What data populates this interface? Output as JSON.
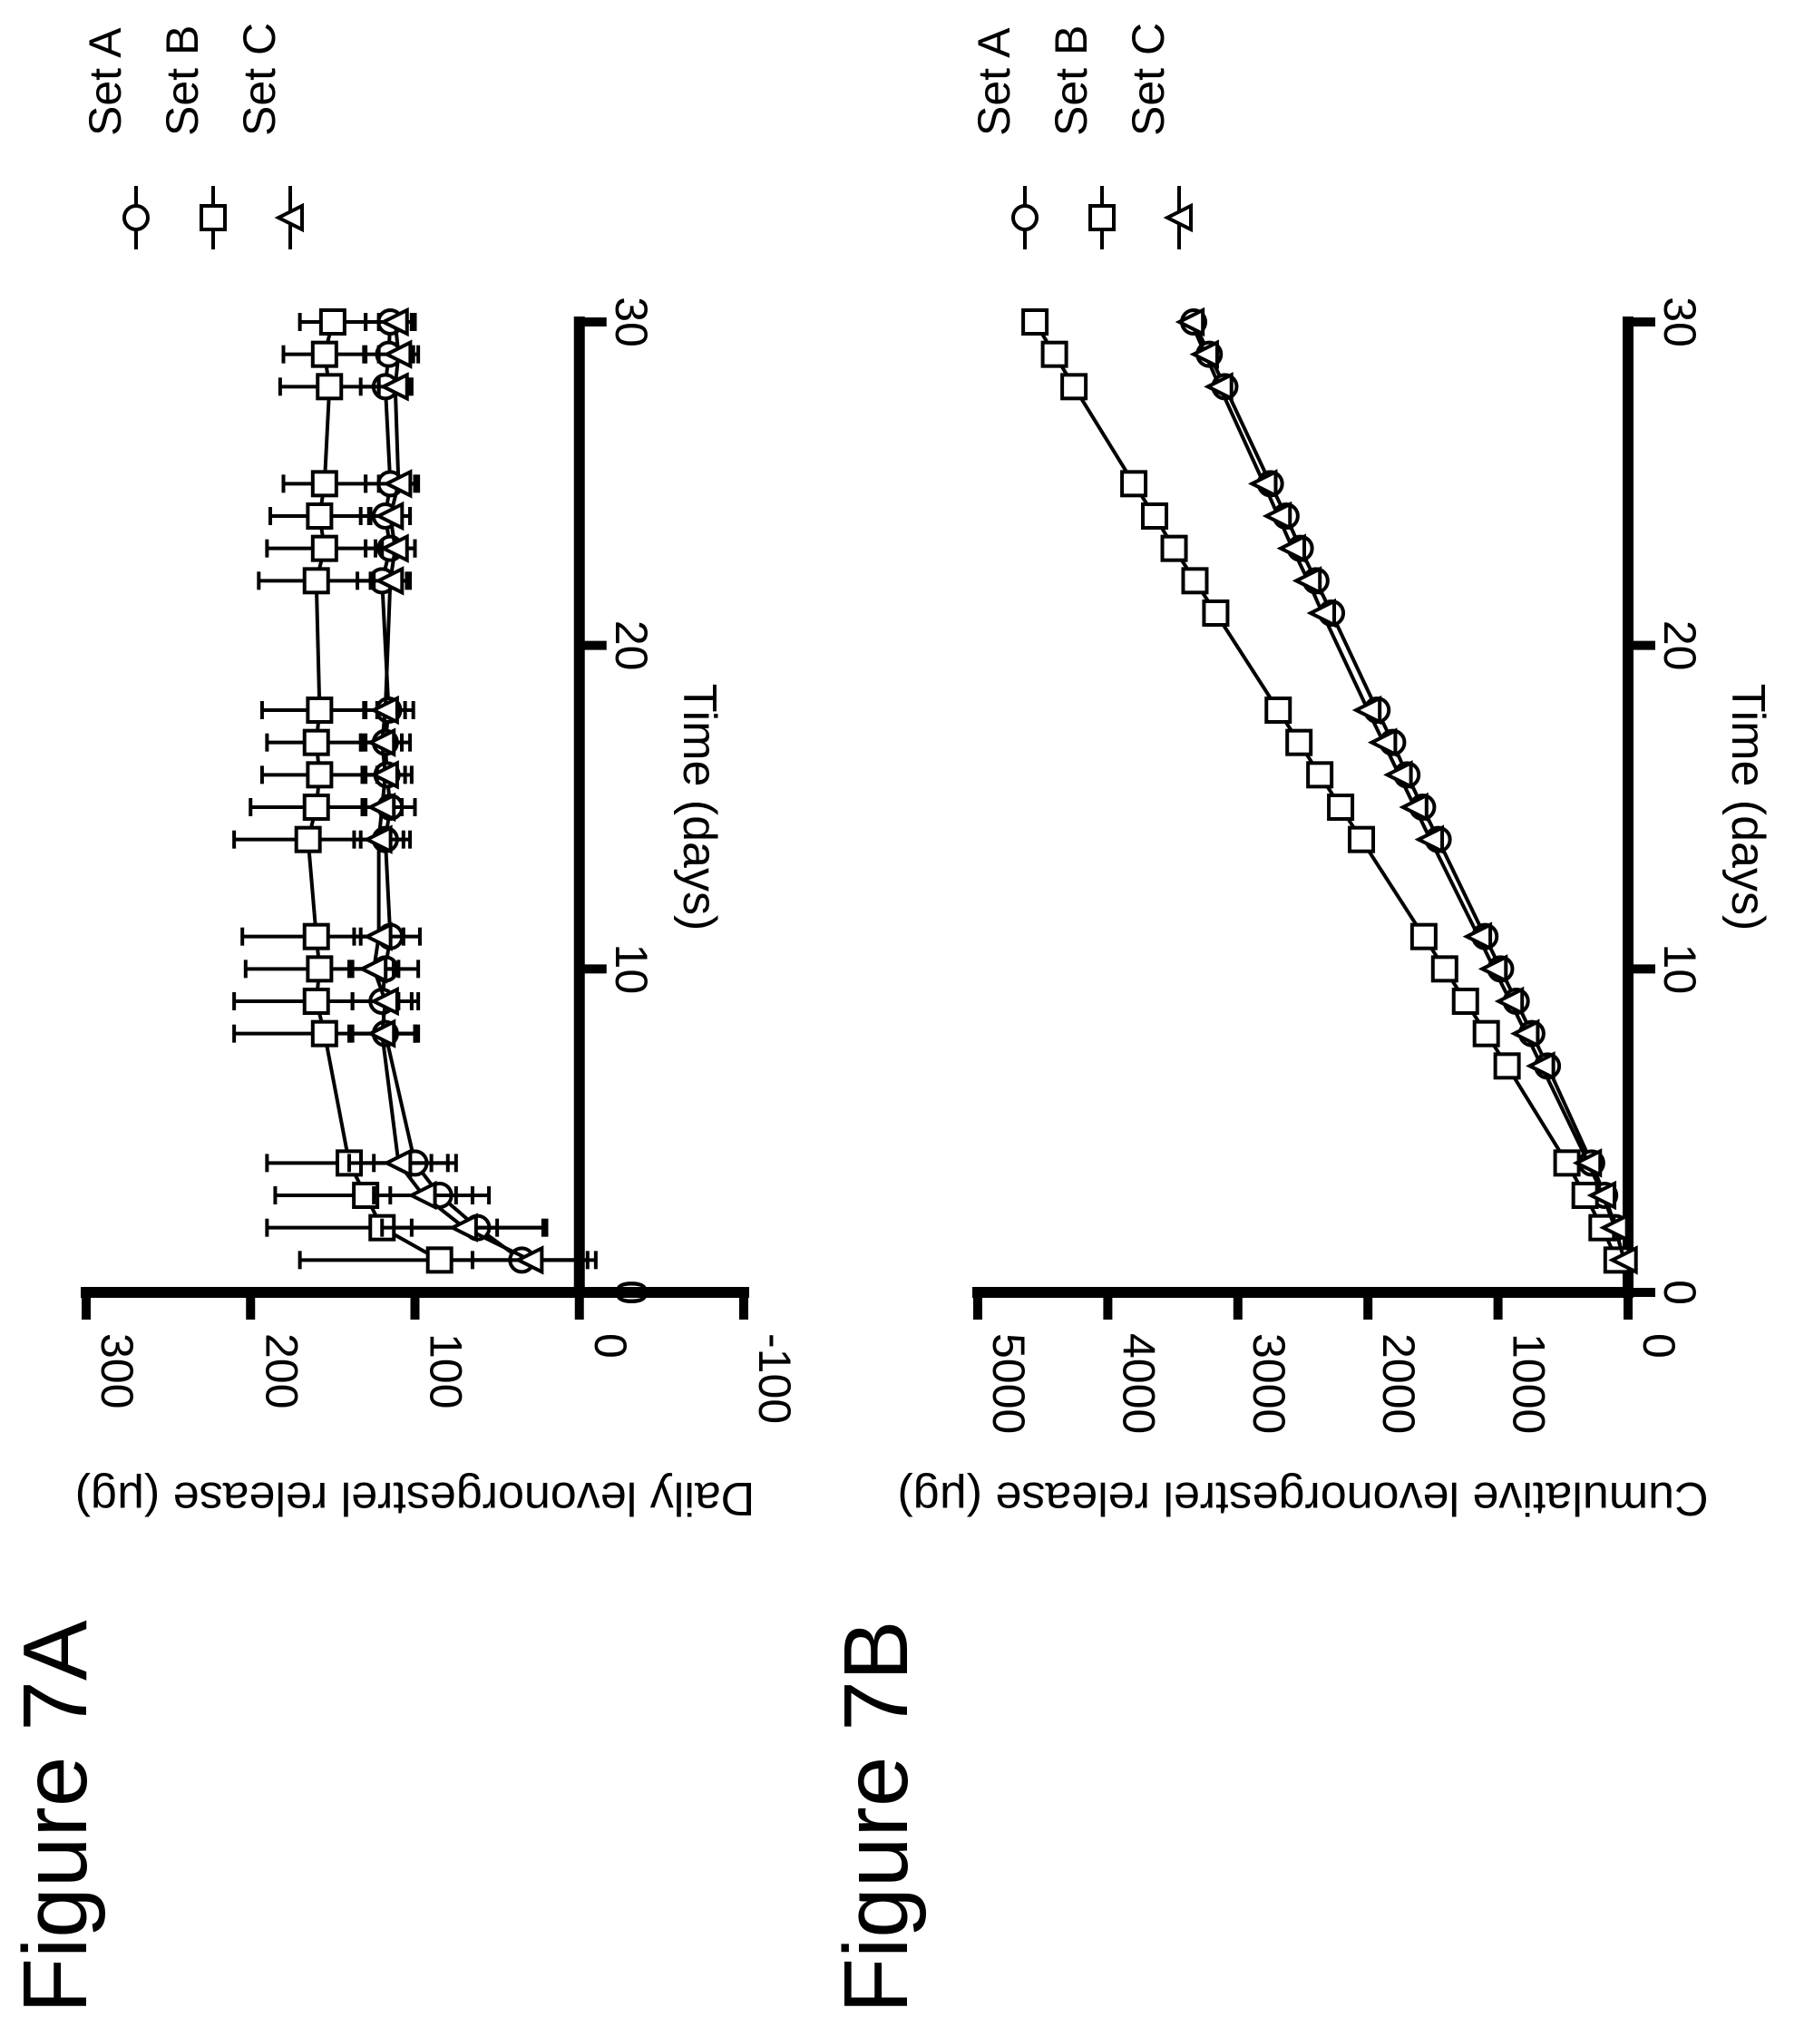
{
  "figure_labels": [
    "Figure 7A",
    "Figure 7B"
  ],
  "chart_data": [
    {
      "type": "line",
      "figure_label": "Figure 7A",
      "title": "",
      "xlabel": "Time (days)",
      "ylabel": "Daily levonorgestrel release (μg)",
      "xlim": [
        0,
        30
      ],
      "ylim": [
        -100,
        300
      ],
      "xticks": [
        "0",
        "10",
        "20",
        "30"
      ],
      "yticks": [
        "-100",
        "0",
        "100",
        "200",
        "300"
      ],
      "error_bars": true,
      "legend_placement": "top-right",
      "series": [
        {
          "name": "Set A",
          "marker": "circle",
          "x": [
            1,
            2,
            3,
            4,
            8,
            9,
            10,
            11,
            14,
            15,
            16,
            17,
            18,
            22,
            23,
            24,
            25,
            28,
            29,
            30
          ],
          "values": [
            35,
            62,
            85,
            100,
            118,
            120,
            118,
            115,
            118,
            115,
            117,
            118,
            116,
            120,
            115,
            118,
            115,
            118,
            116,
            115
          ],
          "errors": [
            45,
            40,
            30,
            25,
            20,
            18,
            20,
            18,
            15,
            15,
            15,
            15,
            15,
            15,
            15,
            15,
            15,
            15,
            15,
            15
          ]
        },
        {
          "name": "Set B",
          "marker": "square",
          "x": [
            1,
            2,
            3,
            4,
            8,
            9,
            10,
            11,
            14,
            15,
            16,
            17,
            18,
            22,
            23,
            24,
            25,
            28,
            29,
            30
          ],
          "values": [
            85,
            120,
            130,
            140,
            155,
            160,
            158,
            160,
            165,
            160,
            158,
            160,
            158,
            160,
            155,
            158,
            155,
            152,
            155,
            150
          ],
          "errors": [
            85,
            70,
            55,
            50,
            55,
            50,
            45,
            45,
            45,
            40,
            35,
            30,
            35,
            35,
            35,
            30,
            25,
            30,
            25,
            20
          ]
        },
        {
          "name": "Set C",
          "marker": "triangle",
          "x": [
            1,
            2,
            3,
            4,
            8,
            9,
            10,
            11,
            14,
            15,
            16,
            17,
            18,
            22,
            23,
            24,
            25,
            28,
            29,
            30
          ],
          "values": [
            30,
            70,
            95,
            110,
            120,
            118,
            125,
            122,
            122,
            120,
            118,
            120,
            118,
            115,
            112,
            115,
            110,
            112,
            110,
            112
          ],
          "errors": [
            35,
            50,
            30,
            30,
            20,
            20,
            15,
            15,
            15,
            12,
            12,
            12,
            12,
            12,
            12,
            12,
            12,
            10,
            12,
            10
          ]
        }
      ]
    },
    {
      "type": "line",
      "figure_label": "Figure 7B",
      "title": "",
      "xlabel": "Time (days)",
      "ylabel": "Cumulative levonorgestrel release (μg)",
      "xlim": [
        0,
        30
      ],
      "ylim": [
        0,
        5000
      ],
      "xticks": [
        "0",
        "10",
        "20",
        "30"
      ],
      "yticks": [
        "0",
        "1000",
        "2000",
        "3000",
        "4000",
        "5000"
      ],
      "error_bars": false,
      "legend_placement": "top-right",
      "series": [
        {
          "name": "Set A",
          "marker": "circle",
          "x": [
            1,
            2,
            3,
            4,
            7,
            8,
            9,
            10,
            11,
            14,
            15,
            16,
            17,
            18,
            21,
            22,
            23,
            24,
            25,
            28,
            29,
            30
          ],
          "values": [
            35,
            95,
            180,
            280,
            620,
            740,
            860,
            980,
            1100,
            1460,
            1580,
            1700,
            1810,
            1930,
            2280,
            2400,
            2520,
            2630,
            2750,
            3100,
            3220,
            3340
          ]
        },
        {
          "name": "Set B",
          "marker": "square",
          "x": [
            1,
            2,
            3,
            4,
            7,
            8,
            9,
            10,
            11,
            14,
            15,
            16,
            17,
            18,
            21,
            22,
            23,
            24,
            25,
            28,
            29,
            30
          ],
          "values": [
            85,
            200,
            330,
            470,
            930,
            1090,
            1250,
            1410,
            1570,
            2050,
            2210,
            2370,
            2530,
            2690,
            3170,
            3330,
            3490,
            3640,
            3800,
            4260,
            4410,
            4560
          ]
        },
        {
          "name": "Set C",
          "marker": "triangle",
          "x": [
            1,
            2,
            3,
            4,
            7,
            8,
            9,
            10,
            11,
            14,
            15,
            16,
            17,
            18,
            21,
            22,
            23,
            24,
            25,
            28,
            29,
            30
          ],
          "values": [
            30,
            100,
            195,
            305,
            665,
            785,
            905,
            1030,
            1150,
            1520,
            1640,
            1760,
            1880,
            2000,
            2350,
            2460,
            2580,
            2690,
            2800,
            3140,
            3250,
            3360
          ]
        }
      ]
    }
  ]
}
